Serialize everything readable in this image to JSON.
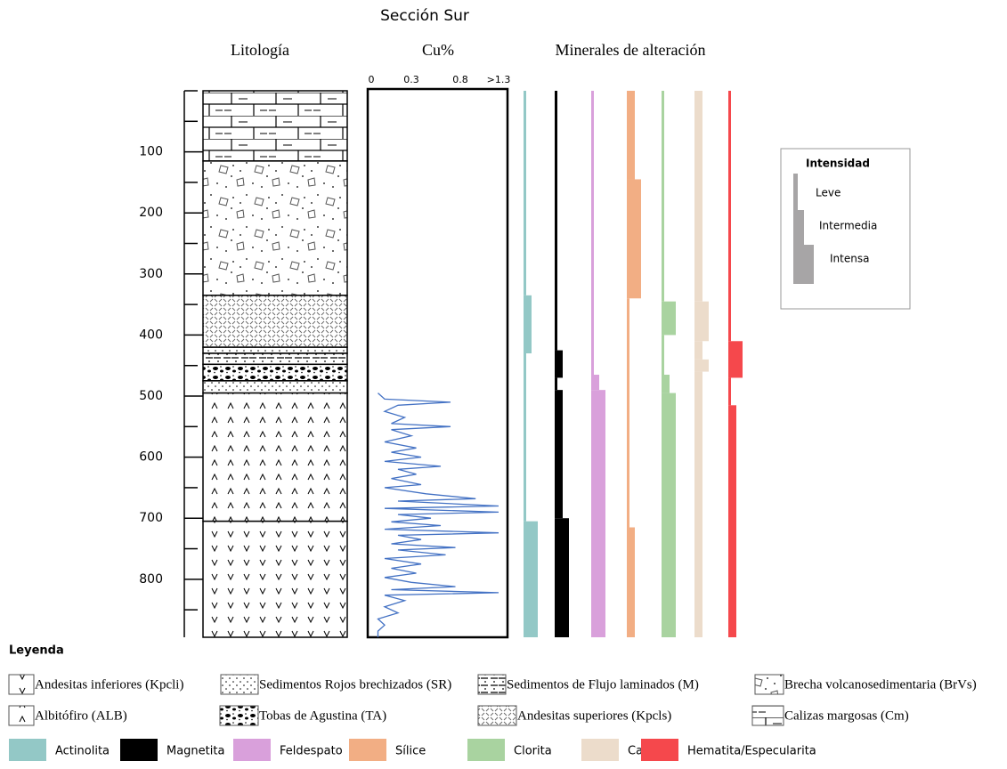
{
  "title": "Sección Sur",
  "column_titles": {
    "lithology": "Litología",
    "cu": "Cu%",
    "minerals": "Minerales de alteración"
  },
  "depth_axis": {
    "ylim": [
      0,
      895
    ],
    "labeled_ticks": [
      100,
      200,
      300,
      400,
      500,
      600,
      700,
      800
    ],
    "minor_ticks": [
      0,
      50,
      150,
      250,
      350,
      450,
      550,
      650,
      750,
      850
    ]
  },
  "cu": {
    "ticks": [
      0,
      0.3,
      0.8,
      {
        "value": 1.3,
        "label": ">1.3"
      }
    ],
    "depth": [
      495,
      505,
      510,
      515,
      525,
      535,
      545,
      550,
      555,
      565,
      575,
      585,
      592,
      600,
      607,
      615,
      620,
      628,
      635,
      645,
      650,
      660,
      668,
      672,
      680,
      684,
      690,
      694,
      700,
      706,
      712,
      718,
      724,
      728,
      735,
      742,
      748,
      752,
      760,
      766,
      775,
      782,
      790,
      797,
      805,
      812,
      817,
      822,
      826,
      835,
      845,
      855,
      865,
      875,
      885,
      895
    ],
    "values": [
      0.05,
      0.1,
      0.7,
      0.2,
      0.1,
      0.25,
      0.15,
      0.7,
      0.15,
      0.3,
      0.1,
      0.35,
      0.15,
      0.4,
      0.1,
      0.6,
      0.2,
      0.35,
      0.15,
      0.4,
      0.1,
      0.45,
      1.0,
      0.2,
      1.3,
      0.1,
      1.3,
      0.2,
      0.5,
      0.15,
      0.6,
      0.1,
      1.3,
      0.2,
      0.4,
      0.15,
      0.75,
      0.2,
      0.65,
      0.1,
      0.4,
      0.15,
      0.35,
      0.1,
      0.3,
      0.75,
      0.15,
      1.3,
      0.1,
      0.25,
      0.1,
      0.2,
      0.05,
      0.1,
      0.05,
      0.05
    ]
  },
  "layers": [
    {
      "code": "Cm",
      "top": 0,
      "bottom": 115
    },
    {
      "code": "BrVs",
      "top": 115,
      "bottom": 335
    },
    {
      "code": "Kpcls",
      "top": 335,
      "bottom": 420
    },
    {
      "code": "SR",
      "top": 420,
      "bottom": 430
    },
    {
      "code": "M",
      "top": 430,
      "bottom": 448
    },
    {
      "code": "TA",
      "top": 448,
      "bottom": 475
    },
    {
      "code": "SR",
      "top": 475,
      "bottom": 495
    },
    {
      "code": "ALB",
      "top": 495,
      "bottom": 705
    },
    {
      "code": "Kpcli",
      "top": 705,
      "bottom": 895
    }
  ],
  "minerals": [
    {
      "name": "Actinolita",
      "color": "#93c8c6",
      "intervals": [
        {
          "top": 0,
          "bottom": 335,
          "intensity": 1
        },
        {
          "top": 335,
          "bottom": 430,
          "intensity": 2
        },
        {
          "top": 430,
          "bottom": 705,
          "intensity": 1
        },
        {
          "top": 705,
          "bottom": 895,
          "intensity": 3
        }
      ]
    },
    {
      "name": "Magnetita",
      "color": "#000000",
      "intervals": [
        {
          "top": 0,
          "bottom": 425,
          "intensity": 1
        },
        {
          "top": 425,
          "bottom": 470,
          "intensity": 2
        },
        {
          "top": 470,
          "bottom": 490,
          "intensity": 1
        },
        {
          "top": 490,
          "bottom": 700,
          "intensity": 2
        },
        {
          "top": 700,
          "bottom": 895,
          "intensity": 3
        }
      ]
    },
    {
      "name": "Feldespato",
      "color": "#d9a0db",
      "intervals": [
        {
          "top": 0,
          "bottom": 465,
          "intensity": 1
        },
        {
          "top": 465,
          "bottom": 490,
          "intensity": 2
        },
        {
          "top": 490,
          "bottom": 895,
          "intensity": 3
        }
      ]
    },
    {
      "name": "Sílice",
      "color": "#f2ae84",
      "intervals": [
        {
          "top": 0,
          "bottom": 145,
          "intensity": 2
        },
        {
          "top": 145,
          "bottom": 340,
          "intensity": 3
        },
        {
          "top": 340,
          "bottom": 715,
          "intensity": 1
        },
        {
          "top": 715,
          "bottom": 895,
          "intensity": 2
        }
      ]
    },
    {
      "name": "Clorita",
      "color": "#a9d3a0",
      "intervals": [
        {
          "top": 0,
          "bottom": 345,
          "intensity": 1
        },
        {
          "top": 345,
          "bottom": 400,
          "intensity": 3
        },
        {
          "top": 400,
          "bottom": 465,
          "intensity": 1
        },
        {
          "top": 465,
          "bottom": 495,
          "intensity": 2
        },
        {
          "top": 495,
          "bottom": 895,
          "intensity": 3
        }
      ]
    },
    {
      "name": "Calcita",
      "color": "#ecdccb",
      "intervals": [
        {
          "top": 0,
          "bottom": 345,
          "intensity": 2
        },
        {
          "top": 345,
          "bottom": 410,
          "intensity": 3
        },
        {
          "top": 410,
          "bottom": 440,
          "intensity": 2
        },
        {
          "top": 440,
          "bottom": 460,
          "intensity": 3
        },
        {
          "top": 460,
          "bottom": 895,
          "intensity": 2
        }
      ]
    },
    {
      "name": "Hematita/Especularita",
      "color": "#f5484c",
      "intervals": [
        {
          "top": 0,
          "bottom": 410,
          "intensity": 1
        },
        {
          "top": 410,
          "bottom": 470,
          "intensity": 3
        },
        {
          "top": 470,
          "bottom": 515,
          "intensity": 1
        },
        {
          "top": 515,
          "bottom": 895,
          "intensity": 2
        }
      ]
    }
  ],
  "intensity": {
    "title": "Intensidad",
    "levels": [
      "Leve",
      "Intermedia",
      "Intensa"
    ]
  },
  "legend_title": "Leyenda",
  "lithology_legend": [
    {
      "code": "Kpcli",
      "label": "Andesitas inferiores (Kpcli)"
    },
    {
      "code": "SR",
      "label": "Sedimentos Rojos brechizados (SR)"
    },
    {
      "code": "M",
      "label": "Sedimentos de Flujo laminados (M)"
    },
    {
      "code": "BrVs",
      "label": "Brecha volcanosedimentaria (BrVs)"
    },
    {
      "code": "ALB",
      "label": "Albitófiro (ALB)"
    },
    {
      "code": "TA",
      "label": "Tobas de Agustina (TA)"
    },
    {
      "code": "Kpcls",
      "label": "Andesitas superiores (Kpcls)"
    },
    {
      "code": "Cm",
      "label": "Calizas margosas (Cm)"
    }
  ]
}
